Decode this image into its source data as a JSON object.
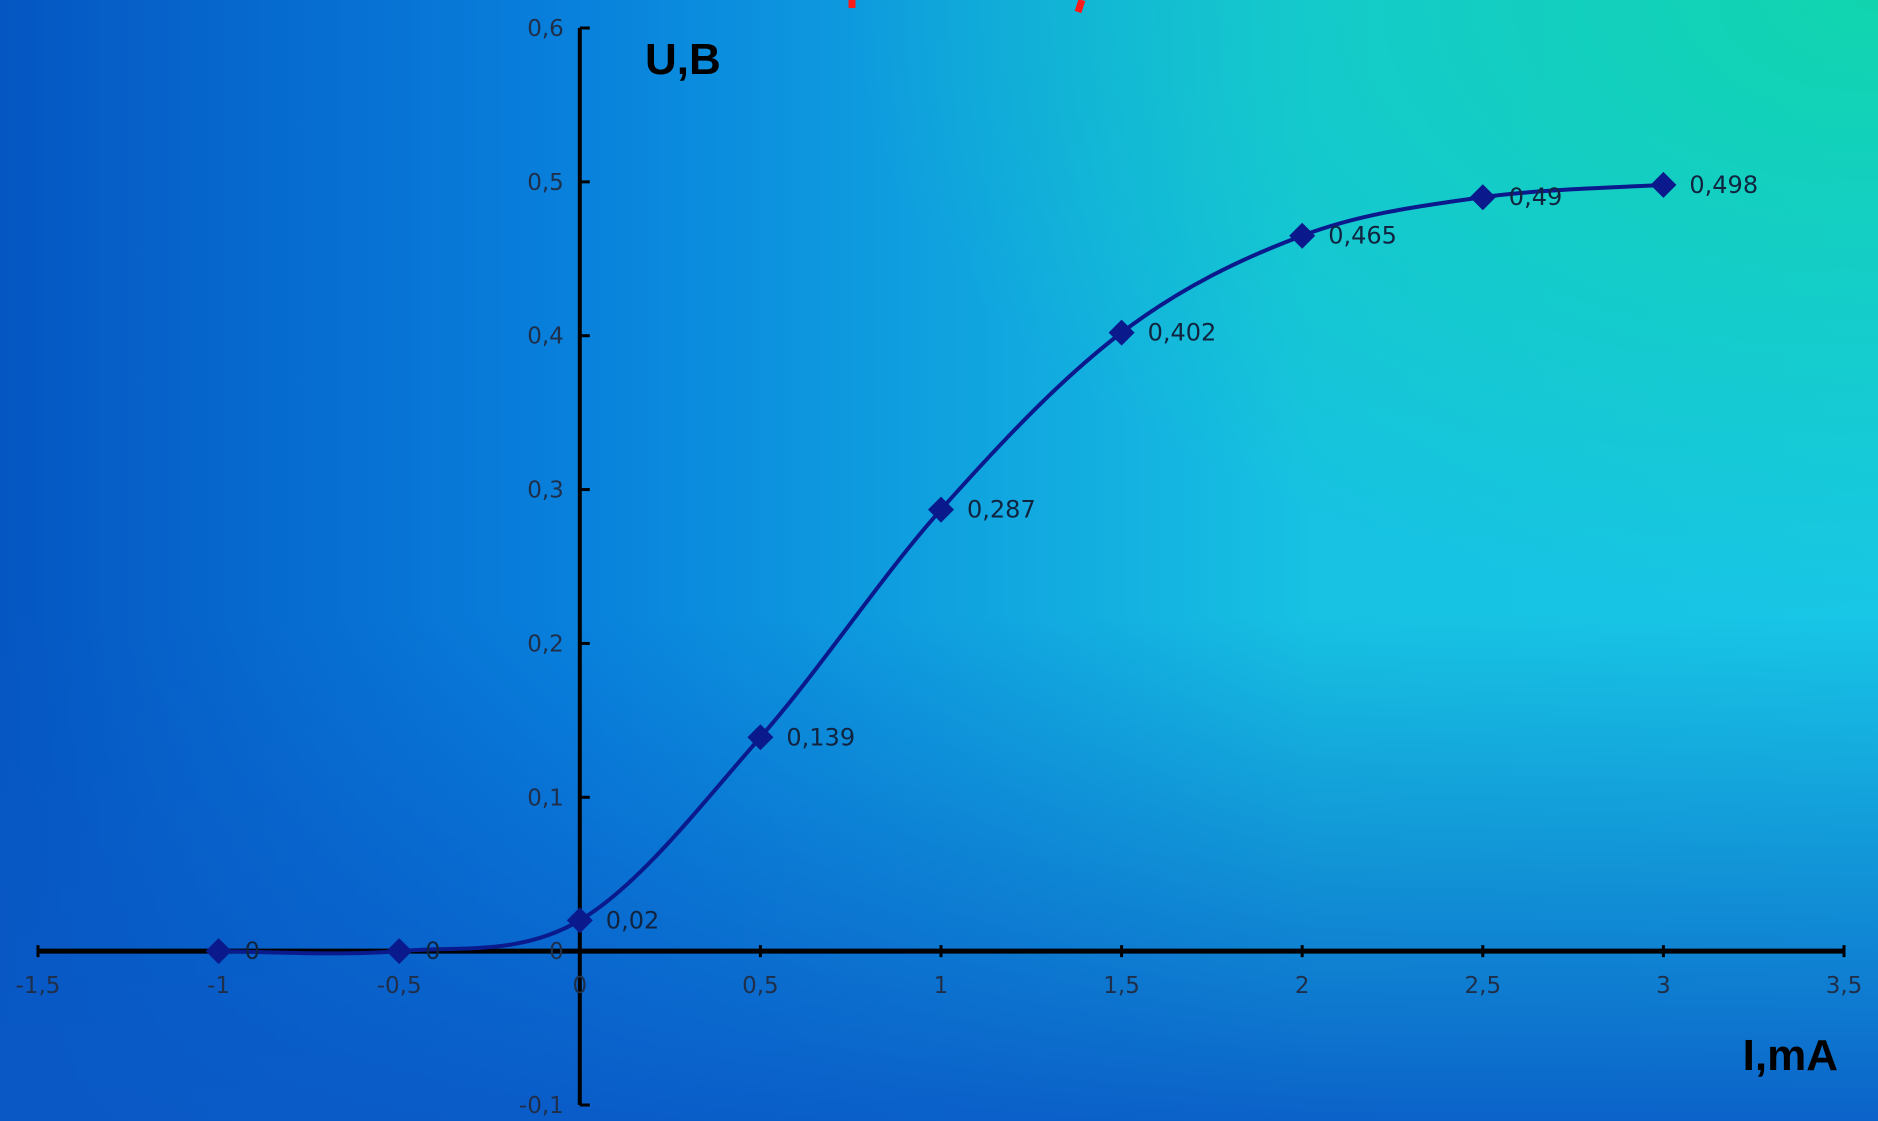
{
  "colors": {
    "background_left": "#0657c4",
    "background_mid": "#1aaee0",
    "background_top_right": "#10d2b6",
    "series": "#0a1a8c",
    "axis": "#000000",
    "title_fragment": "#ff1a1a"
  },
  "chart_data": {
    "type": "line",
    "title": "",
    "xlabel": "I,mA",
    "ylabel": "U,B",
    "xlim": [
      -1.5,
      3.5
    ],
    "ylim": [
      -0.1,
      0.6
    ],
    "x_ticks": [
      -1.5,
      -1,
      -0.5,
      0,
      0.5,
      1,
      1.5,
      2,
      2.5,
      3,
      3.5
    ],
    "x_tick_labels": [
      "-1,5",
      "-1",
      "-0,5",
      "0",
      "0,5",
      "1",
      "1,5",
      "2",
      "2,5",
      "3",
      "3,5"
    ],
    "y_ticks": [
      -0.1,
      0,
      0.1,
      0.2,
      0.3,
      0.4,
      0.5,
      0.6
    ],
    "y_tick_labels": [
      "-0,1",
      "0",
      "0,1",
      "0,2",
      "0,3",
      "0,4",
      "0,5",
      "0,6"
    ],
    "grid": false,
    "legend": "none",
    "smooth": true,
    "marker": "diamond",
    "series": [
      {
        "x": [
          -1,
          -0.5,
          0,
          0.5,
          1,
          1.5,
          2,
          2.5,
          3
        ],
        "y": [
          0,
          0,
          0.02,
          0.139,
          0.287,
          0.402,
          0.465,
          0.49,
          0.498
        ],
        "labels": [
          "0",
          "0",
          "0,02",
          "0,139",
          "0,287",
          "0,402",
          "0,465",
          "0,49",
          "0,498"
        ]
      }
    ]
  }
}
